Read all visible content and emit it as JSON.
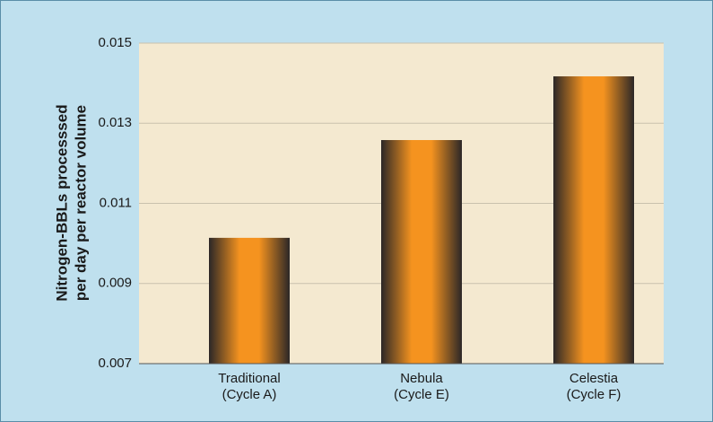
{
  "chart_data": {
    "type": "bar",
    "y_label": [
      "Nitrogen-BBLs processsed",
      "per day per reactor volume"
    ],
    "categories": [
      [
        "Traditional",
        "(Cycle A)"
      ],
      [
        "Nebula",
        "(Cycle E)"
      ],
      [
        "Celestia",
        "(Cycle F)"
      ]
    ],
    "values": [
      0.01014,
      0.01258,
      0.01417
    ],
    "color": "#f5931f",
    "ylim": [
      0.007,
      0.015
    ],
    "yticks": [
      0.007,
      0.009,
      0.011,
      0.013,
      0.015
    ],
    "grid": true
  }
}
